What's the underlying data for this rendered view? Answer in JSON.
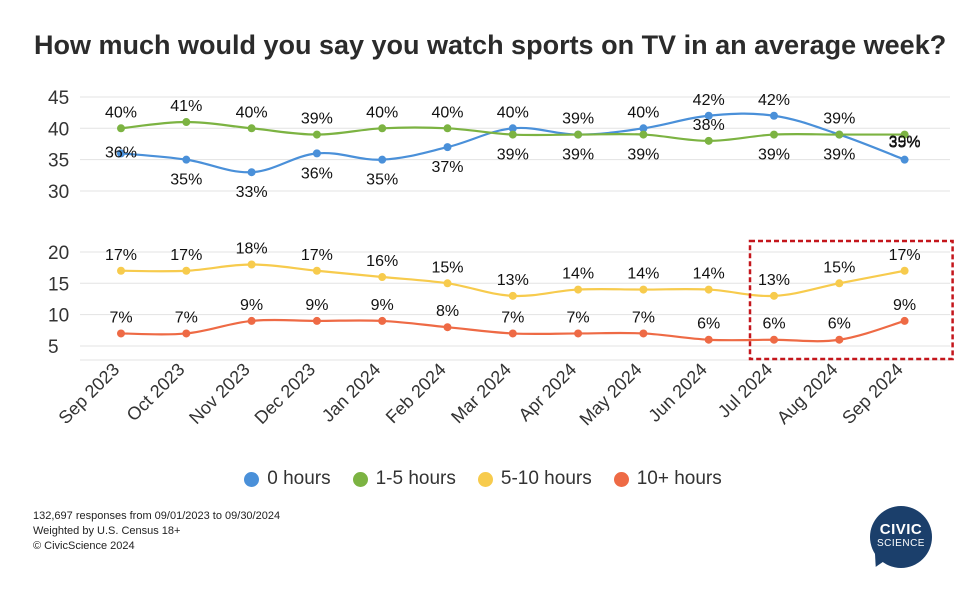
{
  "title": "How much would you say you watch sports on TV in an average week?",
  "legend": [
    {
      "label": "0 hours",
      "color": "#4a90d9"
    },
    {
      "label": "1-5 hours",
      "color": "#7cb342"
    },
    {
      "label": "5-10 hours",
      "color": "#f7cb4d"
    },
    {
      "label": "10+ hours",
      "color": "#ee6a45"
    }
  ],
  "footnote": {
    "line1": "132,697 responses from 09/01/2023 to 09/30/2024",
    "line2": "Weighted by U.S. Census 18+",
    "line3": "© CivicScience 2024"
  },
  "logo": {
    "top": "CIVIC",
    "bottom": "SCIENCE"
  },
  "chart_data": {
    "type": "line",
    "title": "How much would you say you watch sports on TV in an average week?",
    "x": [
      "Sep 2023",
      "Oct 2023",
      "Nov 2023",
      "Dec 2023",
      "Jan 2024",
      "Feb 2024",
      "Mar 2024",
      "Apr 2024",
      "May 2024",
      "Jun 2024",
      "Jul 2024",
      "Aug 2024",
      "Sep 2024"
    ],
    "yticks": [
      5,
      10,
      15,
      20,
      30,
      35,
      40,
      45
    ],
    "ylim": [
      3,
      46
    ],
    "axis_break": [
      20,
      30
    ],
    "grid": true,
    "legend_position": "bottom",
    "highlight_box": {
      "from": "Jul 2024",
      "to": "Sep 2024",
      "series": [
        "5-10 hours",
        "10+ hours"
      ]
    },
    "series": [
      {
        "name": "0 hours",
        "color": "#4a90d9",
        "values": [
          36,
          35,
          33,
          36,
          35,
          37,
          40,
          39,
          40,
          42,
          42,
          39,
          35
        ],
        "labels": [
          "36%",
          "35%",
          "33%",
          "36%",
          "35%",
          "37%",
          "40%",
          "39%",
          "40%",
          "42%",
          "42%",
          "39%",
          "35%"
        ]
      },
      {
        "name": "1-5 hours",
        "color": "#7cb342",
        "values": [
          40,
          41,
          40,
          39,
          40,
          40,
          39,
          39,
          39,
          38,
          39,
          39,
          39
        ],
        "labels": [
          "40%",
          "41%",
          "40%",
          "39%",
          "40%",
          "40%",
          "39%",
          "39%",
          "39%",
          "38%",
          "39%",
          "39%",
          "39%"
        ]
      },
      {
        "name": "5-10 hours",
        "color": "#f7cb4d",
        "values": [
          17,
          17,
          18,
          17,
          16,
          15,
          13,
          14,
          14,
          14,
          13,
          15,
          17
        ],
        "labels": [
          "17%",
          "17%",
          "18%",
          "17%",
          "16%",
          "15%",
          "13%",
          "14%",
          "14%",
          "14%",
          "13%",
          "15%",
          "17%"
        ]
      },
      {
        "name": "10+ hours",
        "color": "#ee6a45",
        "values": [
          7,
          7,
          9,
          9,
          9,
          8,
          7,
          7,
          7,
          6,
          6,
          6,
          9
        ],
        "labels": [
          "7%",
          "7%",
          "9%",
          "9%",
          "9%",
          "8%",
          "7%",
          "7%",
          "7%",
          "6%",
          "6%",
          "6%",
          "9%"
        ]
      }
    ]
  }
}
